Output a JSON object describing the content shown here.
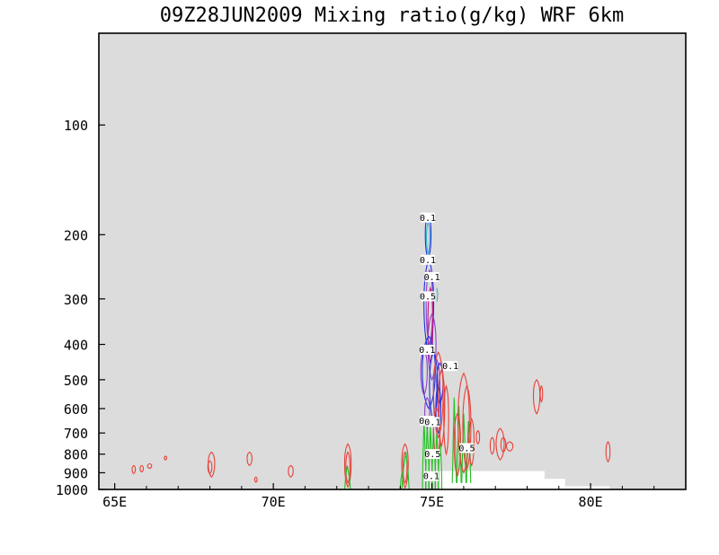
{
  "chart_data": {
    "type": "contour",
    "title": "09Z28JUN2009 Mixing ratio(g/kg)  WRF 6km",
    "x_axis": {
      "range": [
        64.5,
        83.0
      ],
      "ticks": [
        65,
        70,
        75,
        80
      ],
      "tick_labels": [
        "65E",
        "70E",
        "75E",
        "80E"
      ]
    },
    "y_axis": {
      "scale": "log",
      "inverted": true,
      "range": [
        1000,
        56
      ],
      "ticks": [
        100,
        200,
        300,
        400,
        500,
        600,
        700,
        800,
        900,
        1000
      ],
      "tick_labels": [
        "100",
        "200",
        "300",
        "400",
        "500",
        "600",
        "700",
        "800",
        "900",
        "1000"
      ]
    },
    "background": "#dcdcdc",
    "series": [
      {
        "color": "#e8403a"
      },
      {
        "color": "#22c022"
      },
      {
        "color": "#2030e0"
      },
      {
        "color": "#9040c8"
      },
      {
        "color": "#30b8d0"
      },
      {
        "color": "#c01880"
      }
    ],
    "contour_labels": [
      {
        "text": "0.1",
        "lon": 74.87,
        "p": 180
      },
      {
        "text": "0.1",
        "lon": 74.87,
        "p": 235
      },
      {
        "text": "0.1",
        "lon": 75.0,
        "p": 262
      },
      {
        "text": "0.5",
        "lon": 74.87,
        "p": 296
      },
      {
        "text": "0.1",
        "lon": 74.85,
        "p": 415
      },
      {
        "text": "0.1",
        "lon": 75.58,
        "p": 460
      },
      {
        "text": "0.1",
        "lon": 74.85,
        "p": 650
      },
      {
        "text": "0.1",
        "lon": 75.02,
        "p": 655
      },
      {
        "text": "0.5",
        "lon": 75.02,
        "p": 802
      },
      {
        "text": "0.5",
        "lon": 76.1,
        "p": 772
      },
      {
        "text": "0.1",
        "lon": 74.98,
        "p": 922
      }
    ],
    "terrain": [
      {
        "lon_from": 75.2,
        "lon_to": 78.55,
        "p_top": 890
      },
      {
        "lon_from": 78.55,
        "lon_to": 79.2,
        "p_top": 935
      },
      {
        "lon_from": 79.2,
        "lon_to": 80.6,
        "p_top": 980
      }
    ]
  }
}
